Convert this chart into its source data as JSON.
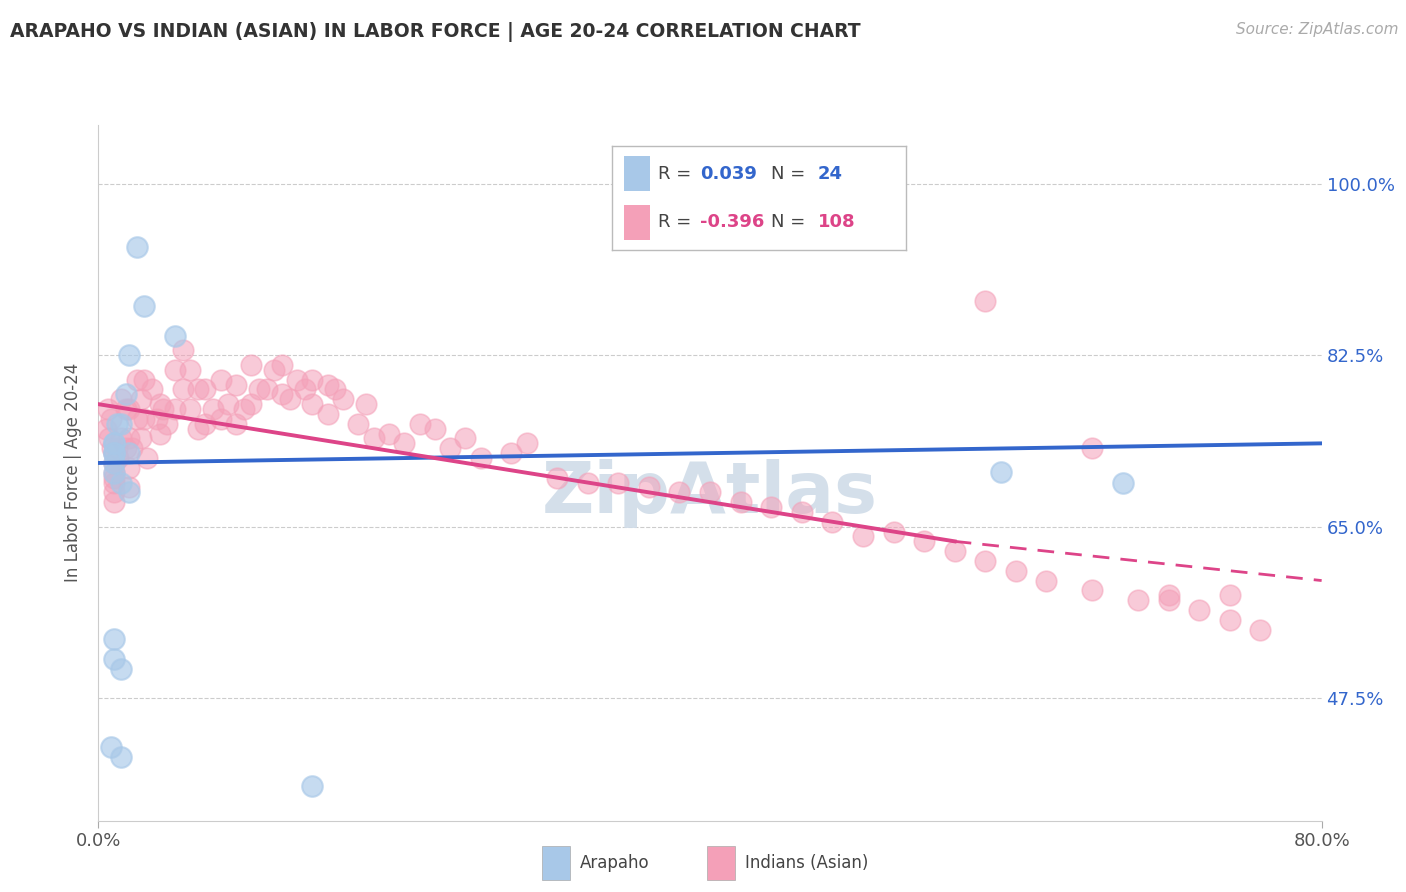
{
  "title": "ARAPAHO VS INDIAN (ASIAN) IN LABOR FORCE | AGE 20-24 CORRELATION CHART",
  "source_text": "Source: ZipAtlas.com",
  "ylabel": "In Labor Force | Age 20-24",
  "xlim": [
    0.0,
    0.8
  ],
  "ylim": [
    0.35,
    1.06
  ],
  "ytick_vals": [
    0.475,
    0.65,
    0.825,
    1.0
  ],
  "xtick_vals": [
    0.0,
    0.8
  ],
  "blue_R": 0.039,
  "blue_N": 24,
  "pink_R": -0.396,
  "pink_N": 108,
  "blue_scatter_color": "#a8c8e8",
  "pink_scatter_color": "#f4a0b8",
  "blue_line_color": "#3366cc",
  "pink_line_color": "#dd4488",
  "background_color": "#ffffff",
  "grid_color": "#cccccc",
  "watermark_color": "#d0dce8",
  "blue_x": [
    0.02,
    0.025,
    0.03,
    0.05,
    0.02,
    0.018,
    0.015,
    0.012,
    0.01,
    0.01,
    0.01,
    0.01,
    0.01,
    0.01,
    0.015,
    0.02,
    0.01,
    0.01,
    0.015,
    0.008,
    0.015,
    0.59,
    0.67,
    0.14
  ],
  "blue_y": [
    0.725,
    0.935,
    0.875,
    0.845,
    0.825,
    0.785,
    0.755,
    0.755,
    0.735,
    0.735,
    0.725,
    0.725,
    0.715,
    0.705,
    0.695,
    0.685,
    0.535,
    0.515,
    0.505,
    0.425,
    0.415,
    0.706,
    0.695,
    0.385
  ],
  "pink_x": [
    0.005,
    0.006,
    0.007,
    0.008,
    0.009,
    0.01,
    0.01,
    0.01,
    0.01,
    0.01,
    0.01,
    0.01,
    0.012,
    0.013,
    0.015,
    0.015,
    0.018,
    0.018,
    0.02,
    0.02,
    0.02,
    0.02,
    0.022,
    0.025,
    0.025,
    0.028,
    0.028,
    0.03,
    0.03,
    0.032,
    0.035,
    0.038,
    0.04,
    0.04,
    0.042,
    0.045,
    0.05,
    0.05,
    0.055,
    0.055,
    0.06,
    0.06,
    0.065,
    0.065,
    0.07,
    0.07,
    0.075,
    0.08,
    0.08,
    0.085,
    0.09,
    0.09,
    0.095,
    0.1,
    0.1,
    0.105,
    0.11,
    0.115,
    0.12,
    0.12,
    0.125,
    0.13,
    0.135,
    0.14,
    0.14,
    0.15,
    0.15,
    0.155,
    0.16,
    0.17,
    0.175,
    0.18,
    0.19,
    0.2,
    0.21,
    0.22,
    0.23,
    0.24,
    0.25,
    0.27,
    0.28,
    0.3,
    0.32,
    0.34,
    0.36,
    0.38,
    0.4,
    0.42,
    0.44,
    0.46,
    0.48,
    0.5,
    0.52,
    0.54,
    0.56,
    0.58,
    0.6,
    0.62,
    0.65,
    0.68,
    0.7,
    0.72,
    0.74,
    0.76,
    0.58,
    0.65,
    0.7,
    0.74
  ],
  "pink_y": [
    0.75,
    0.77,
    0.74,
    0.76,
    0.73,
    0.725,
    0.715,
    0.705,
    0.7,
    0.695,
    0.685,
    0.675,
    0.73,
    0.72,
    0.78,
    0.74,
    0.77,
    0.73,
    0.77,
    0.74,
    0.71,
    0.69,
    0.73,
    0.8,
    0.76,
    0.78,
    0.74,
    0.8,
    0.76,
    0.72,
    0.79,
    0.76,
    0.775,
    0.745,
    0.77,
    0.755,
    0.81,
    0.77,
    0.83,
    0.79,
    0.81,
    0.77,
    0.79,
    0.75,
    0.79,
    0.755,
    0.77,
    0.8,
    0.76,
    0.775,
    0.795,
    0.755,
    0.77,
    0.815,
    0.775,
    0.79,
    0.79,
    0.81,
    0.815,
    0.785,
    0.78,
    0.8,
    0.79,
    0.8,
    0.775,
    0.795,
    0.765,
    0.79,
    0.78,
    0.755,
    0.775,
    0.74,
    0.745,
    0.735,
    0.755,
    0.75,
    0.73,
    0.74,
    0.72,
    0.725,
    0.735,
    0.7,
    0.695,
    0.695,
    0.69,
    0.685,
    0.685,
    0.675,
    0.67,
    0.665,
    0.655,
    0.64,
    0.645,
    0.635,
    0.625,
    0.615,
    0.605,
    0.595,
    0.585,
    0.575,
    0.575,
    0.565,
    0.555,
    0.545,
    0.88,
    0.73,
    0.58,
    0.58
  ]
}
